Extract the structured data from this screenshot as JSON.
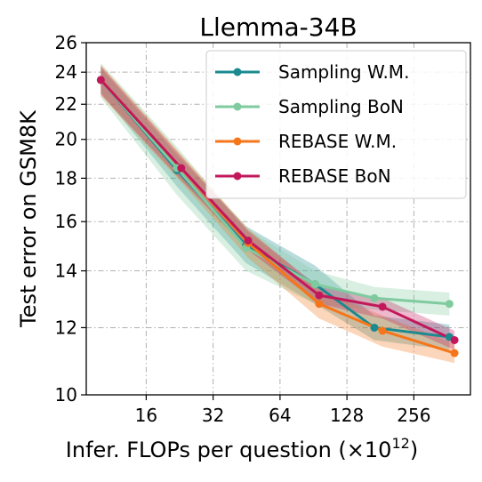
{
  "chart_data": {
    "type": "line",
    "title": "Llemma-34B",
    "xlabel": "Infer. FLOPs per question (×10",
    "xlabel_sup": "12",
    "xlabel_close": ")",
    "ylabel": "Test error on GSM8K",
    "x_scale": "log2",
    "y_scale": "log",
    "xlim": [
      8.6,
      460
    ],
    "ylim": [
      10,
      26
    ],
    "x_ticks": [
      16,
      32,
      64,
      128,
      256
    ],
    "x_tick_labels": [
      "16",
      "32",
      "64",
      "128",
      "256"
    ],
    "y_ticks": [
      10,
      12,
      14,
      16,
      18,
      20,
      22,
      24,
      26
    ],
    "y_tick_labels": [
      "10",
      "12",
      "14",
      "16",
      "18",
      "20",
      "22",
      "24",
      "26"
    ],
    "grid": true,
    "legend_position": "top-right",
    "series": [
      {
        "name": "Sampling W.M.",
        "color": "#1a8a8f",
        "x": [
          10,
          22,
          45,
          92,
          170,
          370
        ],
        "y": [
          23.5,
          18.4,
          15.0,
          13.5,
          12.0,
          11.7
        ],
        "band_low": [
          22.7,
          17.6,
          14.3,
          12.8,
          11.6,
          11.3
        ],
        "band_high": [
          24.3,
          19.2,
          15.8,
          14.2,
          12.4,
          12.1
        ]
      },
      {
        "name": "Sampling BoN",
        "color": "#7fcb9f",
        "x": [
          10,
          22,
          45,
          92,
          170,
          370
        ],
        "y": [
          23.5,
          18.5,
          14.9,
          13.5,
          13.0,
          12.8
        ],
        "band_low": [
          22.4,
          17.2,
          14.0,
          12.8,
          12.6,
          12.4
        ],
        "band_high": [
          24.6,
          19.6,
          15.7,
          14.0,
          13.4,
          13.2
        ]
      },
      {
        "name": "REBASE W.M.",
        "color": "#f5761a",
        "x": [
          10,
          23,
          46,
          96,
          185,
          390
        ],
        "y": [
          23.5,
          18.5,
          15.1,
          12.8,
          11.9,
          11.2
        ],
        "band_low": [
          22.5,
          17.8,
          14.5,
          12.3,
          11.4,
          10.9
        ],
        "band_high": [
          24.5,
          19.2,
          15.7,
          13.3,
          12.4,
          11.5
        ]
      },
      {
        "name": "REBASE BoN",
        "color": "#c2185b",
        "x": [
          10,
          23,
          46,
          96,
          185,
          390
        ],
        "y": [
          23.5,
          18.5,
          15.2,
          13.1,
          12.7,
          11.6
        ],
        "band_low": [
          22.6,
          17.9,
          14.8,
          12.8,
          12.3,
          11.3
        ],
        "band_high": [
          24.4,
          19.1,
          15.6,
          13.4,
          13.0,
          11.9
        ]
      }
    ]
  }
}
